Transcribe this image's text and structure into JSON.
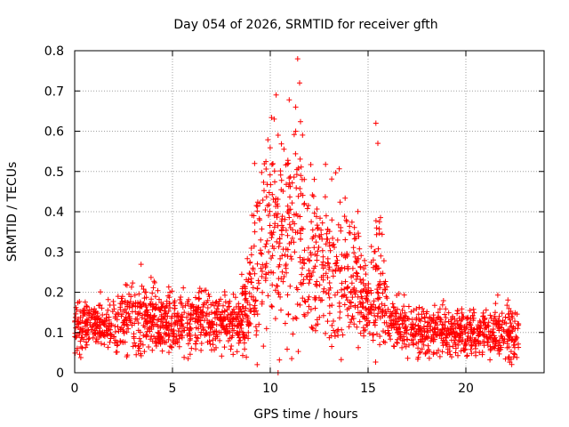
{
  "chart_data": {
    "type": "scatter",
    "title": "Day 054 of 2026, SRMTID for receiver gfth",
    "xlabel": "GPS time / hours",
    "ylabel": "SRMTID / TECUs",
    "xlim": [
      0,
      24
    ],
    "ylim": [
      0,
      0.8
    ],
    "xticks": [
      "0",
      "5",
      "10",
      "15",
      "20"
    ],
    "yticks": [
      "0",
      "0.1",
      "0.2",
      "0.3",
      "0.4",
      "0.5",
      "0.6",
      "0.7",
      "0.8"
    ],
    "grid": true,
    "marker": "+",
    "color": "#ff0000",
    "series": [
      {
        "name": "SRMTID",
        "profile": {
          "description": "approximate trend of the dense scatter, sampled every ~0.5 h",
          "x": [
            0.0,
            1.0,
            2.0,
            3.0,
            4.0,
            5.0,
            6.0,
            7.0,
            8.0,
            8.5,
            9.0,
            9.5,
            10.0,
            10.5,
            11.0,
            11.5,
            12.0,
            12.5,
            13.0,
            13.5,
            14.0,
            14.5,
            15.0,
            15.5,
            16.0,
            16.5,
            17.0,
            18.0,
            19.0,
            20.0,
            21.0,
            22.0,
            22.7
          ],
          "center": [
            0.11,
            0.12,
            0.12,
            0.14,
            0.13,
            0.12,
            0.13,
            0.13,
            0.12,
            0.14,
            0.2,
            0.3,
            0.37,
            0.34,
            0.33,
            0.35,
            0.3,
            0.28,
            0.25,
            0.26,
            0.26,
            0.21,
            0.17,
            0.24,
            0.14,
            0.12,
            0.11,
            0.1,
            0.1,
            0.1,
            0.1,
            0.11,
            0.09
          ],
          "spread": [
            0.03,
            0.03,
            0.03,
            0.05,
            0.04,
            0.04,
            0.04,
            0.04,
            0.03,
            0.04,
            0.08,
            0.1,
            0.12,
            0.12,
            0.12,
            0.12,
            0.1,
            0.1,
            0.09,
            0.1,
            0.1,
            0.08,
            0.05,
            0.1,
            0.04,
            0.03,
            0.03,
            0.03,
            0.03,
            0.03,
            0.03,
            0.04,
            0.03
          ]
        },
        "notable_points": [
          {
            "x": 11.4,
            "y": 0.78
          },
          {
            "x": 11.5,
            "y": 0.72
          },
          {
            "x": 10.3,
            "y": 0.69
          },
          {
            "x": 11.3,
            "y": 0.66
          },
          {
            "x": 15.4,
            "y": 0.62
          },
          {
            "x": 10.2,
            "y": 0.63
          },
          {
            "x": 15.5,
            "y": 0.57
          },
          {
            "x": 11.3,
            "y": 0.6
          },
          {
            "x": 10.4,
            "y": 0.59
          },
          {
            "x": 9.2,
            "y": 0.52
          },
          {
            "x": 10.4,
            "y": 0.0
          }
        ],
        "x_range": [
          0,
          22.7
        ]
      }
    ]
  }
}
